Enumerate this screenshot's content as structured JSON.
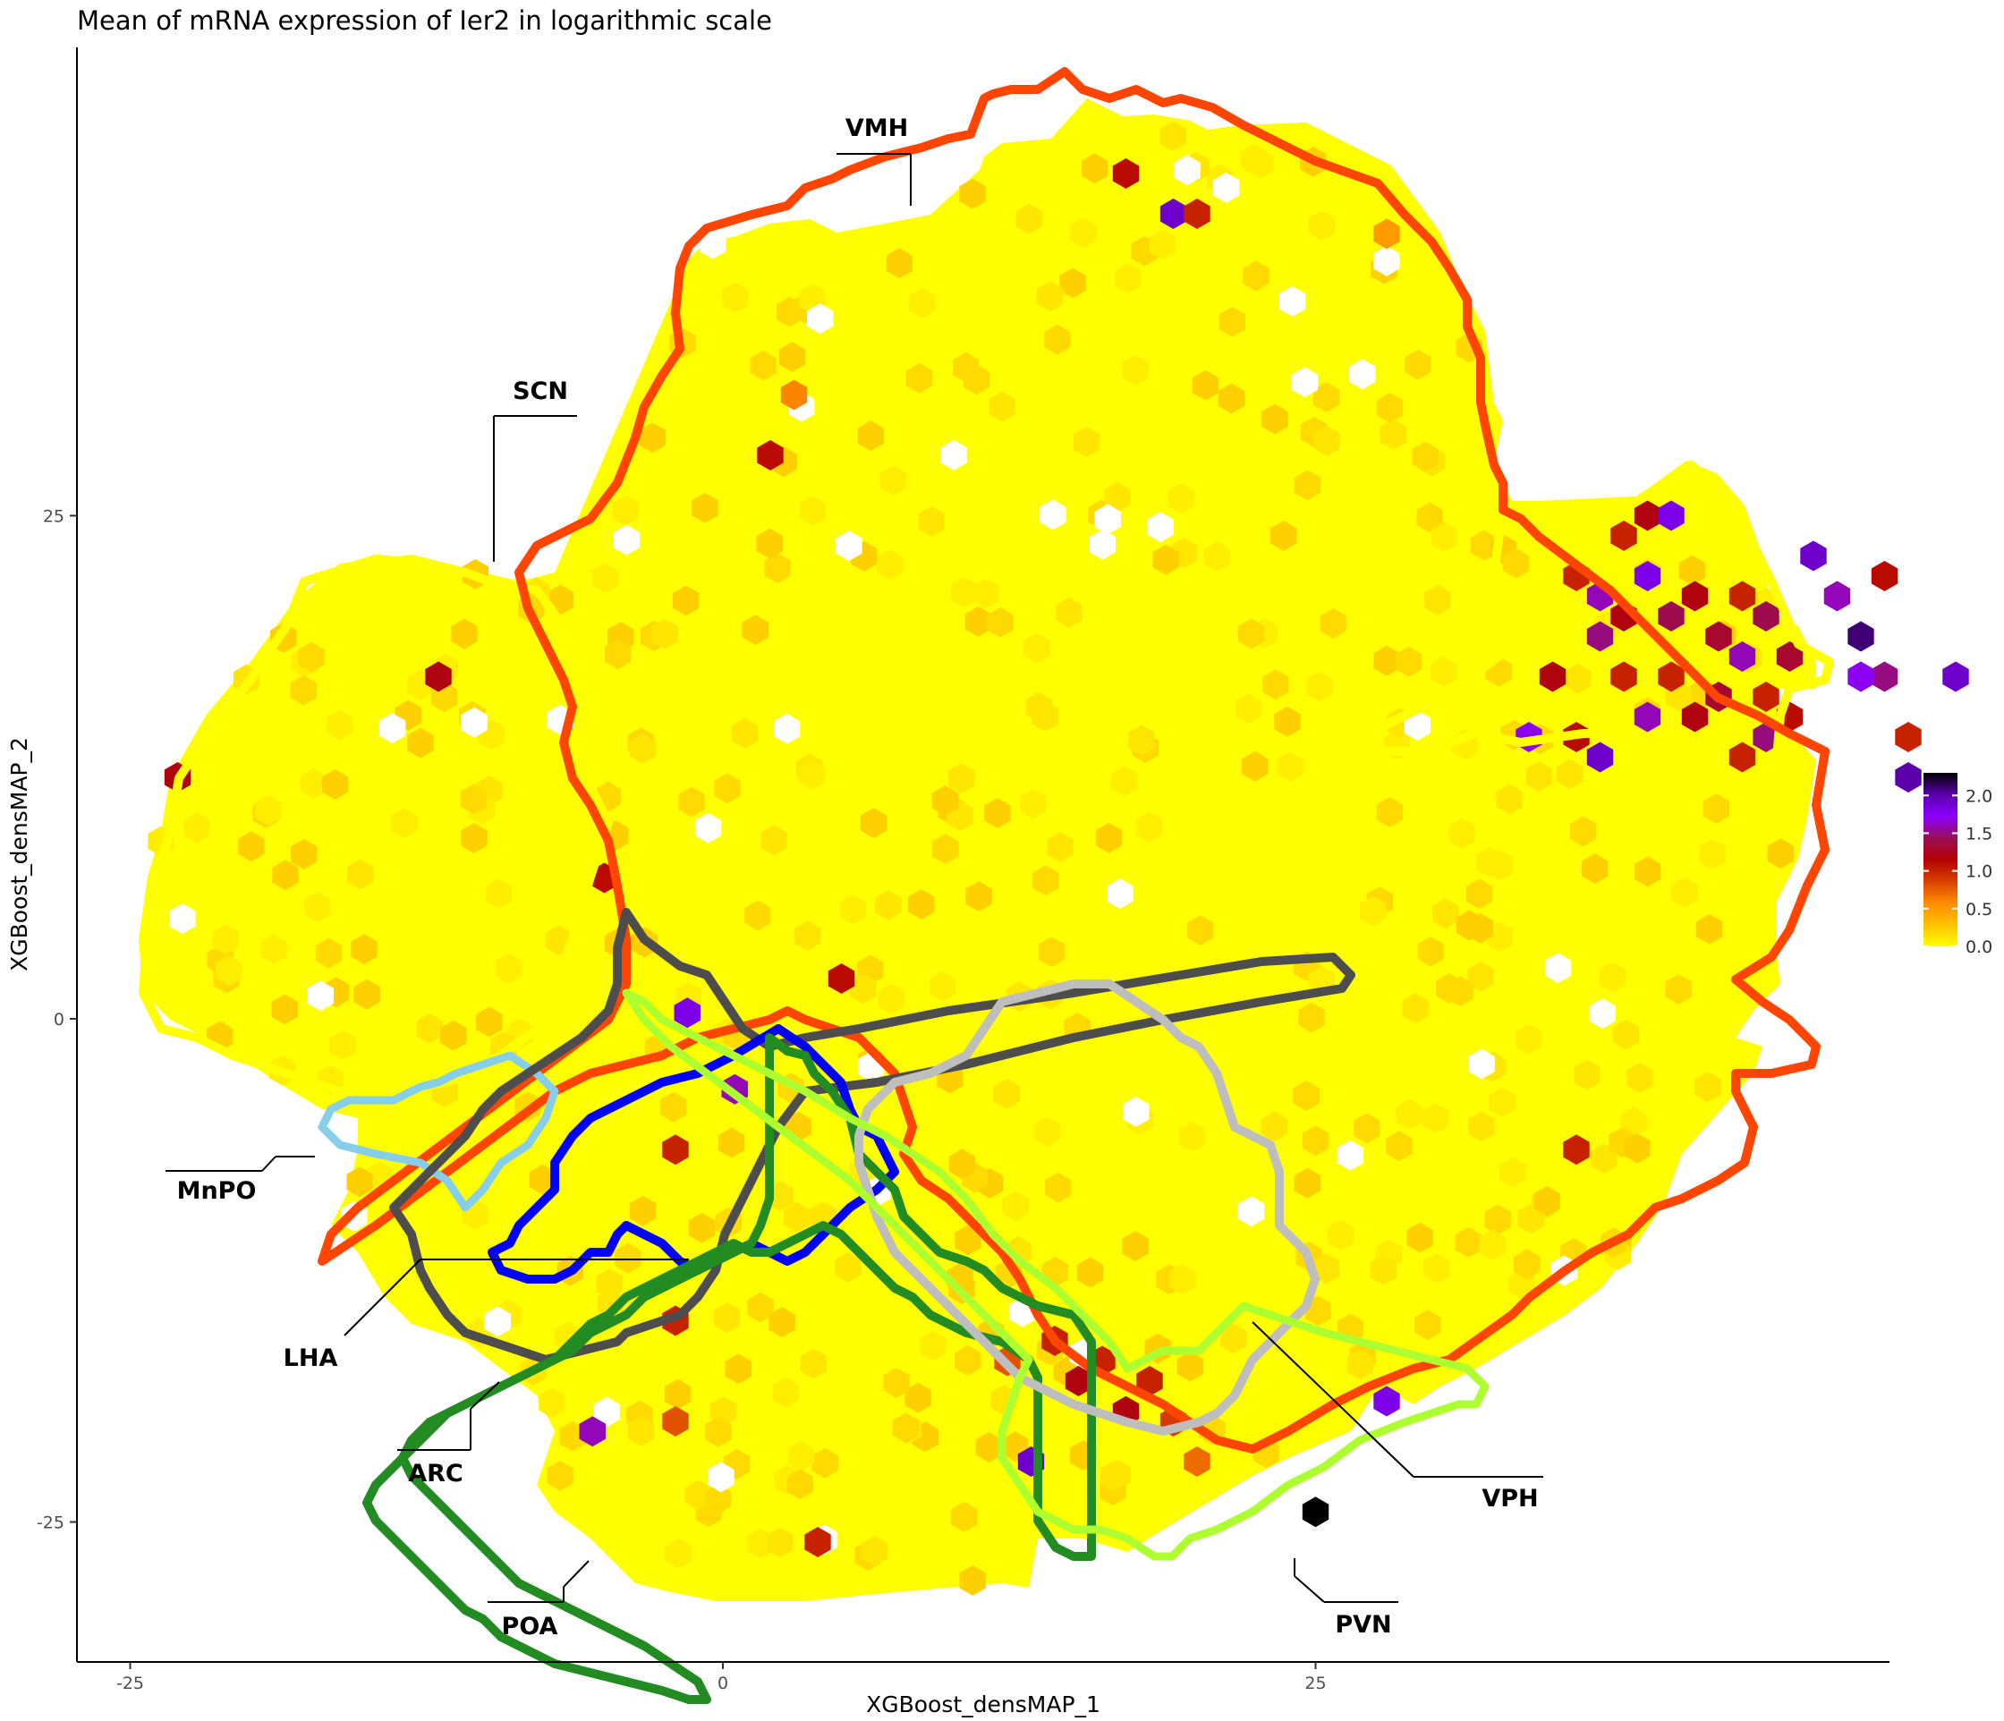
{
  "chart_data": {
    "type": "heatmap",
    "subtype": "hexbin",
    "title": "Mean of mRNA expression of Ier2 in logarithmic scale",
    "xlabel": "XGBoost_densMAP_1",
    "ylabel": "XGBoost_densMAP_2",
    "xlim": [
      -25.5,
      49
    ],
    "ylim": [
      -32,
      48
    ],
    "x_ticks": [
      -25,
      0,
      25
    ],
    "x_tick_labels": [
      "-25",
      "0",
      "25"
    ],
    "y_ticks": [
      -25,
      0,
      25
    ],
    "y_tick_labels": [
      "-25",
      "0",
      "25"
    ],
    "grid": false,
    "colorbar": {
      "position": "right",
      "range": [
        0,
        2.3
      ],
      "ticks": [
        0.0,
        0.5,
        1.0,
        1.5,
        2.0
      ],
      "tick_labels": [
        "0.0",
        "0.5",
        "1.0",
        "1.5",
        "2.0"
      ],
      "colors": [
        "#FFFF00",
        "#FFC200",
        "#FF8C00",
        "#D94100",
        "#B40000",
        "#9A0F5A",
        "#8B00FF",
        "#5A00A8",
        "#000000"
      ]
    },
    "hex_bins": [
      {
        "x": 17,
        "y": 42,
        "value": 1.1
      },
      {
        "x": 19,
        "y": 40,
        "value": 1.9
      },
      {
        "x": 20,
        "y": 40,
        "value": 1.0
      },
      {
        "x": 28,
        "y": 39,
        "value": 0.5
      },
      {
        "x": 2,
        "y": 28,
        "value": 1.1
      },
      {
        "x": 3,
        "y": 31,
        "value": 0.6
      },
      {
        "x": -23,
        "y": 12,
        "value": 1.2
      },
      {
        "x": -12,
        "y": 17,
        "value": 1.2
      },
      {
        "x": -5,
        "y": 7,
        "value": 1.1
      },
      {
        "x": -1.5,
        "y": 0.3,
        "value": 1.8
      },
      {
        "x": 0.5,
        "y": -3.5,
        "value": 1.6
      },
      {
        "x": 5,
        "y": 2,
        "value": 1.1
      },
      {
        "x": 36,
        "y": 22,
        "value": 1.0
      },
      {
        "x": 37,
        "y": 21,
        "value": 1.6
      },
      {
        "x": 37,
        "y": 19,
        "value": 1.5
      },
      {
        "x": 38,
        "y": 20,
        "value": 1.2
      },
      {
        "x": 39,
        "y": 22,
        "value": 1.8
      },
      {
        "x": 40,
        "y": 20,
        "value": 1.4
      },
      {
        "x": 40,
        "y": 17,
        "value": 1.0
      },
      {
        "x": 41,
        "y": 21,
        "value": 1.2
      },
      {
        "x": 42,
        "y": 19,
        "value": 1.3
      },
      {
        "x": 43,
        "y": 18,
        "value": 1.6
      },
      {
        "x": 43,
        "y": 21,
        "value": 1.0
      },
      {
        "x": 44,
        "y": 20,
        "value": 1.4
      },
      {
        "x": 45,
        "y": 18,
        "value": 1.3
      },
      {
        "x": 46,
        "y": 23,
        "value": 1.9
      },
      {
        "x": 47,
        "y": 21,
        "value": 1.6
      },
      {
        "x": 48,
        "y": 19,
        "value": 2.1
      },
      {
        "x": 49,
        "y": 22,
        "value": 1.1
      },
      {
        "x": 49,
        "y": 17,
        "value": 1.5
      },
      {
        "x": 48,
        "y": 17,
        "value": 1.7
      },
      {
        "x": 38,
        "y": 24,
        "value": 1.0
      },
      {
        "x": 39,
        "y": 25,
        "value": 1.2
      },
      {
        "x": 40,
        "y": 25,
        "value": 1.8
      },
      {
        "x": 38,
        "y": 17,
        "value": 1.0
      },
      {
        "x": 39,
        "y": 15,
        "value": 1.6
      },
      {
        "x": 42,
        "y": 16,
        "value": 1.3
      },
      {
        "x": 44,
        "y": 16,
        "value": 1.0
      },
      {
        "x": 45,
        "y": 15,
        "value": 1.1
      },
      {
        "x": 35,
        "y": 17,
        "value": 1.2
      },
      {
        "x": 34,
        "y": 14,
        "value": 1.7
      },
      {
        "x": 36,
        "y": 14,
        "value": 1.1
      },
      {
        "x": 37,
        "y": 13,
        "value": 1.9
      },
      {
        "x": 41,
        "y": 15,
        "value": 1.2
      },
      {
        "x": 43,
        "y": 13,
        "value": 1.0
      },
      {
        "x": 44,
        "y": 14,
        "value": 1.5
      },
      {
        "x": 50,
        "y": 12,
        "value": 2.0
      },
      {
        "x": 50,
        "y": 14,
        "value": 1.0
      },
      {
        "x": 52,
        "y": 17,
        "value": 1.9
      },
      {
        "x": 28,
        "y": -19,
        "value": 1.8
      },
      {
        "x": 36,
        "y": -6.5,
        "value": 1.0
      },
      {
        "x": 25,
        "y": -24.5,
        "value": 2.3
      },
      {
        "x": -5.5,
        "y": -20.5,
        "value": 1.6
      },
      {
        "x": 13,
        "y": -22,
        "value": 1.9
      },
      {
        "x": 17,
        "y": -19.5,
        "value": 1.2
      },
      {
        "x": 16,
        "y": -17,
        "value": 1.0
      },
      {
        "x": 18,
        "y": -18,
        "value": 1.0
      },
      {
        "x": 19,
        "y": -20,
        "value": 0.9
      },
      {
        "x": 14,
        "y": -16,
        "value": 1.0
      },
      {
        "x": 15,
        "y": -18,
        "value": 1.2
      },
      {
        "x": 4,
        "y": -26,
        "value": 1.0
      },
      {
        "x": -2,
        "y": -20,
        "value": 0.8
      },
      {
        "x": -2,
        "y": -15,
        "value": 1.0
      },
      {
        "x": -2,
        "y": -6.5,
        "value": 1.0
      },
      {
        "x": 12,
        "y": -17,
        "value": 0.8
      },
      {
        "x": 20,
        "y": -22,
        "value": 0.7
      }
    ],
    "region_labels": [
      "VMH",
      "SCN",
      "MnPO",
      "LHA",
      "ARC",
      "POA",
      "VPH",
      "PVN"
    ],
    "series": [
      {
        "name": "VMH",
        "color": "#FF4500"
      },
      {
        "name": "SCN",
        "color": "#FFFF00"
      },
      {
        "name": "MnPO",
        "color": "#87CEEB"
      },
      {
        "name": "LHA",
        "color": "#4D4D4D"
      },
      {
        "name": "ARC",
        "color": "#0000FF"
      },
      {
        "name": "POA",
        "color": "#228B22"
      },
      {
        "name": "VPH",
        "color": "#BEBEBE"
      },
      {
        "name": "PVN",
        "color": "#ADFF2F"
      }
    ]
  }
}
